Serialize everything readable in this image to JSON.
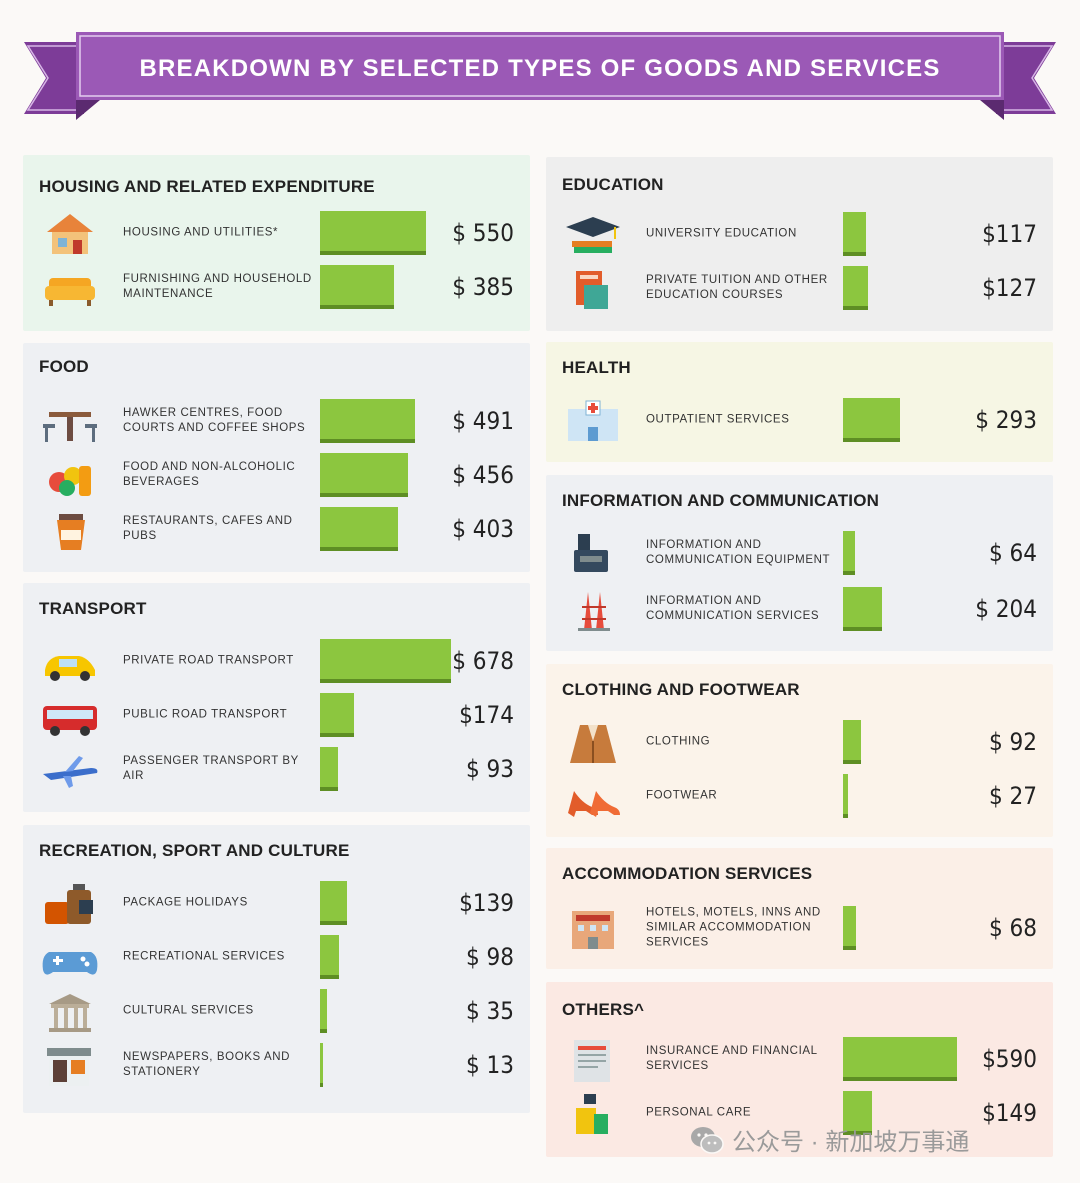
{
  "title": "BREAKDOWN BY SELECTED TYPES OF GOODS AND SERVICES",
  "colors": {
    "bar": "#8cc63f",
    "bar_shadow": "#5e8e24",
    "ribbon": "#9b59b6"
  },
  "chart_data": {
    "type": "bar",
    "title": "BREAKDOWN BY SELECTED TYPES OF GOODS AND SERVICES",
    "xlim": [
      0,
      700
    ],
    "panels": [
      {
        "title": "HOUSING AND RELATED EXPENDITURE",
        "items": [
          {
            "label": "HOUSING AND UTILITIES*",
            "value": 550,
            "display": "$ 550",
            "icon": "house-icon"
          },
          {
            "label": "FURNISHING AND HOUSEHOLD MAINTENANCE",
            "value": 385,
            "display": "$ 385",
            "icon": "sofa-icon"
          }
        ]
      },
      {
        "title": "FOOD",
        "items": [
          {
            "label": "HAWKER CENTRES, FOOD COURTS AND COFFEE SHOPS",
            "value": 491,
            "display": "$ 491",
            "icon": "table-chairs-icon"
          },
          {
            "label": "FOOD AND NON-ALCOHOLIC BEVERAGES",
            "value": 456,
            "display": "$ 456",
            "icon": "fruits-icon"
          },
          {
            "label": "RESTAURANTS, CAFES AND PUBS",
            "value": 403,
            "display": "$ 403",
            "icon": "coffee-cup-icon"
          }
        ]
      },
      {
        "title": "TRANSPORT",
        "items": [
          {
            "label": "PRIVATE ROAD TRANSPORT",
            "value": 678,
            "display": "$ 678",
            "icon": "car-icon"
          },
          {
            "label": "PUBLIC ROAD TRANSPORT",
            "value": 174,
            "display": "$174",
            "icon": "bus-icon"
          },
          {
            "label": "PASSENGER TRANSPORT BY AIR",
            "value": 93,
            "display": "$ 93",
            "icon": "airplane-icon"
          }
        ]
      },
      {
        "title": "RECREATION, SPORT AND CULTURE",
        "items": [
          {
            "label": "PACKAGE HOLIDAYS",
            "value": 139,
            "display": "$139",
            "icon": "luggage-icon"
          },
          {
            "label": "RECREATIONAL SERVICES",
            "value": 98,
            "display": "$ 98",
            "icon": "gamepad-icon"
          },
          {
            "label": "CULTURAL SERVICES",
            "value": 35,
            "display": "$ 35",
            "icon": "museum-icon"
          },
          {
            "label": "NEWSPAPERS, BOOKS AND STATIONERY",
            "value": 13,
            "display": "$ 13",
            "icon": "news-stand-icon"
          }
        ]
      },
      {
        "title": "EDUCATION",
        "items": [
          {
            "label": "UNIVERSITY EDUCATION",
            "value": 117,
            "display": "$117",
            "icon": "graduation-cap-icon"
          },
          {
            "label": "PRIVATE TUITION AND OTHER EDUCATION COURSES",
            "value": 127,
            "display": "$127",
            "icon": "books-icon"
          }
        ]
      },
      {
        "title": "HEALTH",
        "items": [
          {
            "label": "OUTPATIENT SERVICES",
            "value": 293,
            "display": "$ 293",
            "icon": "clinic-icon"
          }
        ]
      },
      {
        "title": "INFORMATION AND COMMUNICATION",
        "items": [
          {
            "label": "INFORMATION AND COMMUNICATION EQUIPMENT",
            "value": 64,
            "display": "$ 64",
            "icon": "phone-icon"
          },
          {
            "label": "INFORMATION AND COMMUNICATION SERVICES",
            "value": 204,
            "display": "$ 204",
            "icon": "antenna-tower-icon"
          }
        ]
      },
      {
        "title": "CLOTHING AND FOOTWEAR",
        "items": [
          {
            "label": "CLOTHING",
            "value": 92,
            "display": "$ 92",
            "icon": "jacket-icon"
          },
          {
            "label": "FOOTWEAR",
            "value": 27,
            "display": "$ 27",
            "icon": "high-heels-icon"
          }
        ]
      },
      {
        "title": "ACCOMMODATION SERVICES",
        "items": [
          {
            "label": "HOTELS, MOTELS, INNS AND SIMILAR ACCOMMODATION SERVICES",
            "value": 68,
            "display": "$ 68",
            "icon": "hotel-icon"
          }
        ]
      },
      {
        "title": "OTHERS^",
        "items": [
          {
            "label": "INSURANCE AND FINANCIAL SERVICES",
            "value": 590,
            "display": "$590",
            "icon": "document-icon"
          },
          {
            "label": "PERSONAL CARE",
            "value": 149,
            "display": "$149",
            "icon": "perfume-icon"
          }
        ]
      }
    ]
  },
  "watermark": {
    "text": "公众号 · 新加坡万事通",
    "icon": "wechat-icon"
  }
}
